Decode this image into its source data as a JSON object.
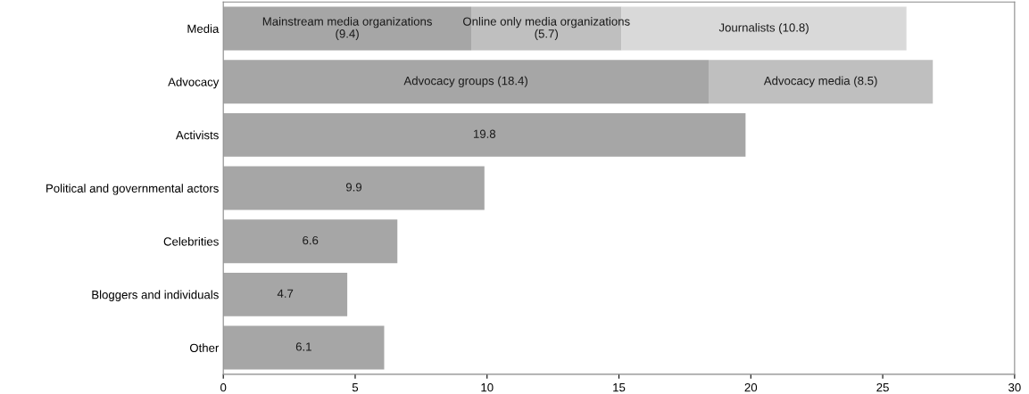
{
  "chart_data": {
    "type": "bar",
    "orientation": "horizontal",
    "stacked": true,
    "categories": [
      "Media",
      "Advocacy",
      "Activists",
      "Political and governmental actors",
      "Celebrities",
      "Bloggers and individuals",
      "Other"
    ],
    "series": [
      {
        "color": "#a6a6a6",
        "values": [
          9.4,
          18.4,
          19.8,
          9.9,
          6.6,
          4.7,
          6.1
        ],
        "value_labels": [
          "Mainstream media organizations\n(9.4)",
          "Advocacy groups (18.4)",
          "19.8",
          "9.9",
          "6.6",
          "4.7",
          "6.1"
        ]
      },
      {
        "color": "#bfbfbf",
        "values": [
          5.7,
          8.5,
          null,
          null,
          null,
          null,
          null
        ],
        "value_labels": [
          "Online only media organizations\n(5.7)",
          "Advocacy media (8.5)",
          null,
          null,
          null,
          null,
          null
        ]
      },
      {
        "color": "#d9d9d9",
        "values": [
          10.8,
          null,
          null,
          null,
          null,
          null,
          null
        ],
        "value_labels": [
          "Journalists (10.8)",
          null,
          null,
          null,
          null,
          null,
          null
        ]
      }
    ],
    "xlim": [
      0,
      30
    ],
    "xticks": [
      0,
      5,
      10,
      15,
      20,
      25,
      30
    ],
    "grid": false
  }
}
